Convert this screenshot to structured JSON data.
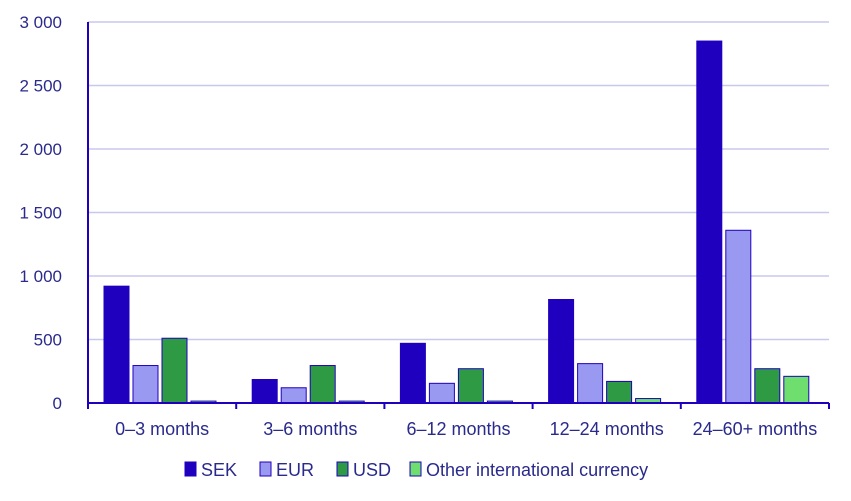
{
  "chart_data": {
    "type": "bar",
    "categories": [
      "0–3 months",
      "3–6 months",
      "6–12 months",
      "12–24 months",
      "24–60+ months"
    ],
    "series": [
      {
        "name": "SEK",
        "values": [
          920,
          185,
          470,
          815,
          2850
        ],
        "color": "#1f00bf"
      },
      {
        "name": "EUR",
        "values": [
          295,
          120,
          155,
          310,
          1360
        ],
        "color": "#9999f2"
      },
      {
        "name": "USD",
        "values": [
          510,
          295,
          270,
          170,
          270
        ],
        "color": "#2e9a44"
      },
      {
        "name": "Other international currency",
        "values": [
          15,
          15,
          15,
          35,
          210
        ],
        "color": "#6ede6e"
      }
    ],
    "yticks": [
      "0",
      "500",
      "1 000",
      "1 500",
      "2 000",
      "2 500",
      "3 000"
    ],
    "ylim": [
      0,
      3000
    ],
    "grid": true,
    "legend_position": "bottom",
    "title": "",
    "xlabel": "",
    "ylabel": ""
  }
}
